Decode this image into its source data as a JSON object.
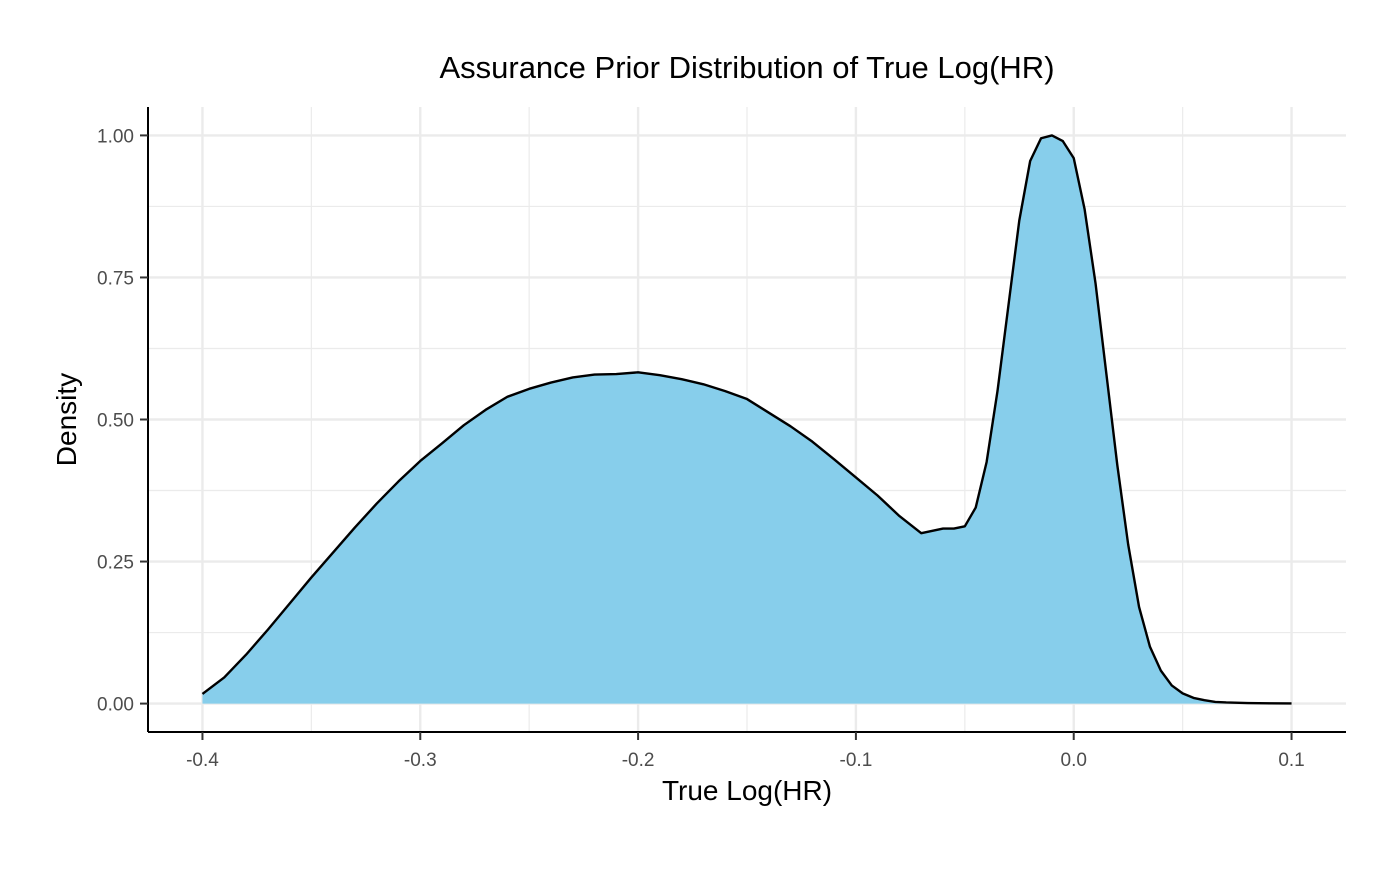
{
  "chart_data": {
    "type": "area",
    "title": "Assurance Prior Distribution of True Log(HR)",
    "xlabel": "True Log(HR)",
    "ylabel": "Density",
    "xlim": [
      -0.425,
      0.125
    ],
    "ylim": [
      -0.05,
      1.05
    ],
    "x_ticks": [
      -0.4,
      -0.3,
      -0.2,
      -0.1,
      0.0,
      0.1
    ],
    "x_tick_labels": [
      "-0.4",
      "-0.3",
      "-0.2",
      "-0.1",
      "0.0",
      "0.1"
    ],
    "y_ticks": [
      0.0,
      0.25,
      0.5,
      0.75,
      1.0
    ],
    "y_tick_labels": [
      "0.00",
      "0.25",
      "0.50",
      "0.75",
      "1.00"
    ],
    "grid": true,
    "fill_color": "#87CEEB",
    "line_color": "#000000",
    "series": [
      {
        "x": [
          -0.4,
          -0.39,
          -0.38,
          -0.37,
          -0.36,
          -0.35,
          -0.34,
          -0.33,
          -0.32,
          -0.31,
          -0.3,
          -0.29,
          -0.28,
          -0.27,
          -0.26,
          -0.25,
          -0.24,
          -0.23,
          -0.22,
          -0.21,
          -0.2,
          -0.19,
          -0.18,
          -0.17,
          -0.16,
          -0.15,
          -0.14,
          -0.13,
          -0.12,
          -0.11,
          -0.1,
          -0.09,
          -0.08,
          -0.07,
          -0.06,
          -0.055,
          -0.05,
          -0.045,
          -0.04,
          -0.035,
          -0.03,
          -0.025,
          -0.02,
          -0.015,
          -0.01,
          -0.005,
          0.0,
          0.005,
          0.01,
          0.015,
          0.02,
          0.025,
          0.03,
          0.035,
          0.04,
          0.045,
          0.05,
          0.055,
          0.06,
          0.065,
          0.07,
          0.08,
          0.09,
          0.1
        ],
        "y": [
          0.017,
          0.046,
          0.086,
          0.13,
          0.176,
          0.222,
          0.266,
          0.31,
          0.352,
          0.391,
          0.427,
          0.458,
          0.49,
          0.517,
          0.54,
          0.554,
          0.565,
          0.574,
          0.579,
          0.58,
          0.583,
          0.578,
          0.571,
          0.562,
          0.55,
          0.536,
          0.512,
          0.488,
          0.461,
          0.43,
          0.398,
          0.366,
          0.33,
          0.3,
          0.308,
          0.308,
          0.312,
          0.345,
          0.425,
          0.55,
          0.7,
          0.85,
          0.955,
          0.995,
          1.0,
          0.99,
          0.96,
          0.87,
          0.74,
          0.58,
          0.42,
          0.28,
          0.17,
          0.1,
          0.058,
          0.032,
          0.018,
          0.01,
          0.006,
          0.003,
          0.002,
          0.001,
          0.0005,
          0.0003
        ]
      }
    ]
  }
}
